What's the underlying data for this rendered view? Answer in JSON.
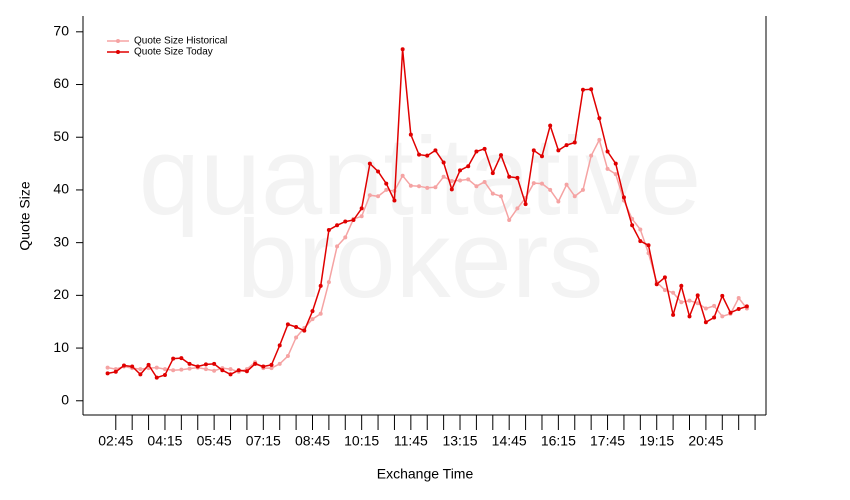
{
  "chart_data": {
    "type": "line",
    "watermark": [
      "quantitative",
      "brokers"
    ],
    "xlabel": "Exchange Time",
    "ylabel": "Quote Size",
    "x": [
      "02:30",
      "02:45",
      "03:00",
      "03:15",
      "03:30",
      "03:45",
      "04:00",
      "04:15",
      "04:30",
      "04:45",
      "05:00",
      "05:15",
      "05:30",
      "05:45",
      "06:00",
      "06:15",
      "06:30",
      "06:45",
      "07:00",
      "07:15",
      "07:30",
      "07:45",
      "08:00",
      "08:15",
      "08:30",
      "08:45",
      "09:00",
      "09:15",
      "09:30",
      "09:45",
      "10:00",
      "10:15",
      "10:30",
      "10:45",
      "11:00",
      "11:15",
      "11:30",
      "11:45",
      "12:00",
      "12:15",
      "12:30",
      "12:45",
      "13:00",
      "13:15",
      "13:30",
      "13:45",
      "14:00",
      "14:15",
      "14:30",
      "14:45",
      "15:00",
      "15:15",
      "15:30",
      "15:45",
      "16:00",
      "16:15",
      "16:30",
      "16:45",
      "17:00",
      "17:15",
      "17:30",
      "17:45",
      "18:00",
      "18:15",
      "18:30",
      "18:45",
      "19:00",
      "19:15",
      "19:30",
      "19:45",
      "20:00",
      "20:15",
      "20:30",
      "20:45",
      "21:00",
      "21:15",
      "21:30",
      "21:45",
      "22:00"
    ],
    "series": [
      {
        "name": "Quote Size Historical",
        "color": "#f5a3a3",
        "values": [
          6.3,
          6.0,
          6.5,
          6.2,
          6.0,
          6.2,
          6.3,
          6.0,
          5.8,
          5.9,
          6.1,
          6.3,
          6.0,
          5.7,
          6.2,
          6.0,
          5.5,
          6.0,
          7.3,
          6.2,
          6.2,
          7.0,
          8.5,
          12.0,
          13.8,
          15.5,
          16.5,
          22.5,
          29.3,
          31.0,
          34.5,
          35.0,
          39.0,
          38.8,
          40.0,
          39.8,
          42.7,
          40.8,
          40.7,
          40.4,
          40.5,
          42.5,
          41.7,
          41.8,
          42.0,
          40.7,
          41.5,
          39.3,
          38.8,
          34.3,
          36.5,
          38.5,
          41.3,
          41.2,
          40.0,
          37.8,
          41.0,
          38.8,
          40.0,
          46.5,
          49.5,
          44.0,
          43.0,
          38.0,
          34.5,
          32.5,
          28.0,
          22.5,
          21.0,
          20.5,
          18.7,
          19.0,
          18.5,
          17.5,
          18.0,
          16.0,
          16.5,
          19.5,
          17.5
        ]
      },
      {
        "name": "Quote Size Today",
        "color": "#e00000",
        "values": [
          5.2,
          5.5,
          6.7,
          6.5,
          5.0,
          6.8,
          4.4,
          4.9,
          8.0,
          8.1,
          7.0,
          6.5,
          6.9,
          7.0,
          5.8,
          5.0,
          5.8,
          5.6,
          7.0,
          6.5,
          6.8,
          10.5,
          14.5,
          14.0,
          13.3,
          17.0,
          21.8,
          32.4,
          33.3,
          34.0,
          34.3,
          36.5,
          45.0,
          43.5,
          41.2,
          38.0,
          66.7,
          50.5,
          46.7,
          46.5,
          47.5,
          45.2,
          40.1,
          43.7,
          44.5,
          47.3,
          47.8,
          43.2,
          46.6,
          42.5,
          42.3,
          37.3,
          47.5,
          46.4,
          52.2,
          47.5,
          48.5,
          49.0,
          59.0,
          59.1,
          53.6,
          47.3,
          45.0,
          38.6,
          33.3,
          30.3,
          29.5,
          22.1,
          23.4,
          16.3,
          21.8,
          16.0,
          20.0,
          14.9,
          15.8,
          19.9,
          16.7,
          17.4,
          17.9
        ]
      }
    ],
    "xlim": [
      "01:45",
      "22:35"
    ],
    "xticks": [
      "02:45",
      "04:15",
      "05:45",
      "07:15",
      "08:45",
      "10:15",
      "11:45",
      "13:15",
      "14:45",
      "16:15",
      "17:45",
      "19:15",
      "20:45"
    ],
    "xminorticks": [
      "03:15",
      "03:45",
      "04:45",
      "05:15",
      "06:15",
      "06:45",
      "07:45",
      "08:15",
      "09:15",
      "09:45",
      "10:45",
      "11:15",
      "12:15",
      "12:45",
      "13:45",
      "14:15",
      "15:15",
      "15:45",
      "16:45",
      "17:15",
      "18:15",
      "18:45",
      "19:45",
      "20:15",
      "21:15",
      "21:45",
      "22:15"
    ],
    "ylim": [
      -2.7,
      73
    ],
    "yticks": [
      0,
      10,
      20,
      30,
      40,
      50,
      60,
      70
    ],
    "legend": "upper left"
  }
}
